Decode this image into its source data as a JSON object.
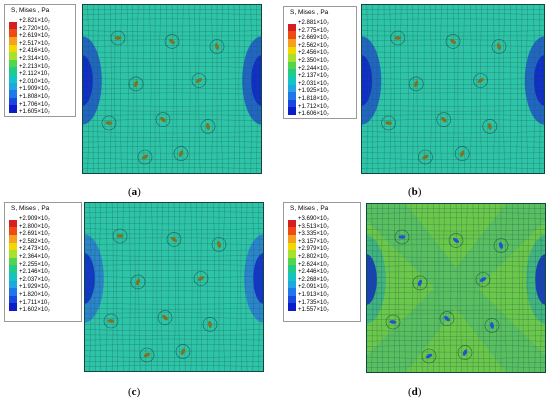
{
  "legend_colors": [
    "#d42020",
    "#f04a14",
    "#f5a020",
    "#f0d800",
    "#a8e030",
    "#52d54a",
    "#22cc88",
    "#14c4c4",
    "#20a6e0",
    "#1e78ea",
    "#1848e0",
    "#0b1cc8"
  ],
  "panels": [
    {
      "caption": "a",
      "legend_title": "S, Mises , Pa",
      "values": [
        {
          "m": "+2.821",
          "e": "7"
        },
        {
          "m": "+2.720",
          "e": "7"
        },
        {
          "m": "+2.619",
          "e": "7"
        },
        {
          "m": "+2.517",
          "e": "7"
        },
        {
          "m": "+2.416",
          "e": "7"
        },
        {
          "m": "+2.314",
          "e": "7"
        },
        {
          "m": "+2.213",
          "e": "7"
        },
        {
          "m": "+2.112",
          "e": "7"
        },
        {
          "m": "+2.010",
          "e": "7"
        },
        {
          "m": "+1.909",
          "e": "7"
        },
        {
          "m": "+1.808",
          "e": "7"
        },
        {
          "m": "+1.706",
          "e": "7"
        },
        {
          "m": "+1.605",
          "e": "7"
        }
      ],
      "base_color": "#2ec4a8",
      "side_color": "#1e56c8"
    },
    {
      "caption": "b",
      "legend_title": "S, Mises , Pa",
      "values": [
        {
          "m": "+2.881",
          "e": "7"
        },
        {
          "m": "+2.775",
          "e": "7"
        },
        {
          "m": "+2.669",
          "e": "7"
        },
        {
          "m": "+2.562",
          "e": "7"
        },
        {
          "m": "+2.456",
          "e": "7"
        },
        {
          "m": "+2.350",
          "e": "7"
        },
        {
          "m": "+2.244",
          "e": "7"
        },
        {
          "m": "+2.137",
          "e": "7"
        },
        {
          "m": "+2.031",
          "e": "7"
        },
        {
          "m": "+1.925",
          "e": "7"
        },
        {
          "m": "+1.818",
          "e": "7"
        },
        {
          "m": "+1.712",
          "e": "7"
        },
        {
          "m": "+1.606",
          "e": "7"
        }
      ],
      "base_color": "#2ec4a8",
      "side_color": "#1e56c8"
    },
    {
      "caption": "c",
      "legend_title": "S, Mises , Pa",
      "values": [
        {
          "m": "+2.909",
          "e": "7"
        },
        {
          "m": "+2.800",
          "e": "7"
        },
        {
          "m": "+2.691",
          "e": "7"
        },
        {
          "m": "+2.582",
          "e": "7"
        },
        {
          "m": "+2.473",
          "e": "7"
        },
        {
          "m": "+2.364",
          "e": "7"
        },
        {
          "m": "+2.255",
          "e": "7"
        },
        {
          "m": "+2.146",
          "e": "7"
        },
        {
          "m": "+2.037",
          "e": "7"
        },
        {
          "m": "+1.929",
          "e": "7"
        },
        {
          "m": "+1.820",
          "e": "7"
        },
        {
          "m": "+1.711",
          "e": "7"
        },
        {
          "m": "+1.602",
          "e": "7"
        }
      ],
      "base_color": "#2ec4a8",
      "side_color": "#2a7ad4"
    },
    {
      "caption": "d",
      "legend_title": "S, Mises , Pa",
      "values": [
        {
          "m": "+3.690",
          "e": "7"
        },
        {
          "m": "+3.513",
          "e": "7"
        },
        {
          "m": "+3.335",
          "e": "7"
        },
        {
          "m": "+3.157",
          "e": "7"
        },
        {
          "m": "+2.979",
          "e": "7"
        },
        {
          "m": "+2.802",
          "e": "7"
        },
        {
          "m": "+2.624",
          "e": "7"
        },
        {
          "m": "+2.446",
          "e": "7"
        },
        {
          "m": "+2.268",
          "e": "7"
        },
        {
          "m": "+2.091",
          "e": "7"
        },
        {
          "m": "+1.913",
          "e": "7"
        },
        {
          "m": "+1.735",
          "e": "7"
        },
        {
          "m": "+1.557",
          "e": "7"
        }
      ],
      "base_color": "#6cc84a",
      "side_color": "#3ab08a"
    }
  ]
}
